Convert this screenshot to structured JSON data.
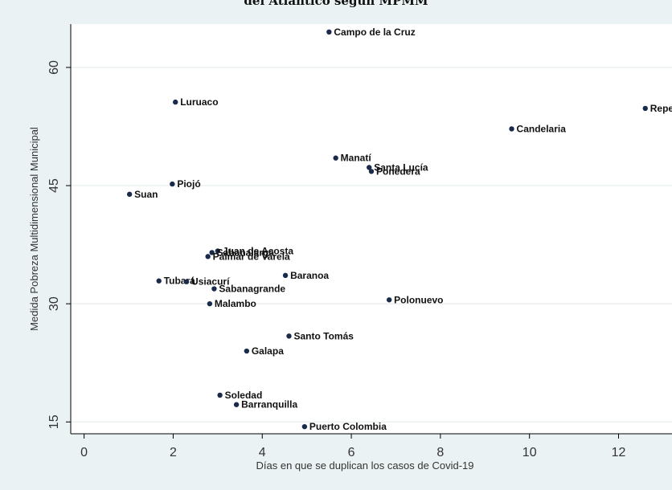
{
  "chart_data": {
    "type": "scatter",
    "title": "del Atlántico según MPMM",
    "xlabel": "Días en que se duplican los casos de Covid-19",
    "ylabel": "Medida Pobreza Multidimensional Municipal",
    "xlim": [
      -0.3,
      13.2
    ],
    "ylim": [
      13.5,
      65.5
    ],
    "xticks": [
      "0",
      "2",
      "4",
      "6",
      "8",
      "10",
      "12"
    ],
    "yticks": [
      "15",
      "30",
      "45",
      "60"
    ],
    "grid": "horizontal",
    "marker_color": "#1a2a4a",
    "points": [
      {
        "label": "Campo de la Cruz",
        "x": 5.5,
        "y": 64.5
      },
      {
        "label": "Luruaco",
        "x": 2.05,
        "y": 55.6
      },
      {
        "label": "Repelón",
        "x": 12.6,
        "y": 54.8
      },
      {
        "label": "Candelaria",
        "x": 9.6,
        "y": 52.2
      },
      {
        "label": "Manatí",
        "x": 5.65,
        "y": 48.5
      },
      {
        "label": "Santa Lucía",
        "x": 6.4,
        "y": 47.3
      },
      {
        "label": "Ponedera",
        "x": 6.45,
        "y": 46.8
      },
      {
        "label": "Piojó",
        "x": 1.98,
        "y": 45.2
      },
      {
        "label": "Suan",
        "x": 1.02,
        "y": 43.9
      },
      {
        "label": "Juan de Acosta",
        "x": 3.0,
        "y": 36.7
      },
      {
        "label": "Sabanalarga",
        "x": 2.87,
        "y": 36.5
      },
      {
        "label": "Palmar de Varela",
        "x": 2.78,
        "y": 36.0
      },
      {
        "label": "Baranoa",
        "x": 4.52,
        "y": 33.6
      },
      {
        "label": "Tubará",
        "x": 1.68,
        "y": 32.9
      },
      {
        "label": "Usiacurí",
        "x": 2.3,
        "y": 32.8
      },
      {
        "label": "Sabanagrande",
        "x": 2.92,
        "y": 31.9
      },
      {
        "label": "Polonuevo",
        "x": 6.85,
        "y": 30.5
      },
      {
        "label": "Malambo",
        "x": 2.82,
        "y": 30.0
      },
      {
        "label": "Santo Tomás",
        "x": 4.6,
        "y": 25.9
      },
      {
        "label": "Galapa",
        "x": 3.65,
        "y": 24.0
      },
      {
        "label": "Soledad",
        "x": 3.05,
        "y": 18.4
      },
      {
        "label": "Barranquilla",
        "x": 3.42,
        "y": 17.2
      },
      {
        "label": "Puerto Colombia",
        "x": 4.95,
        "y": 14.4
      }
    ]
  }
}
